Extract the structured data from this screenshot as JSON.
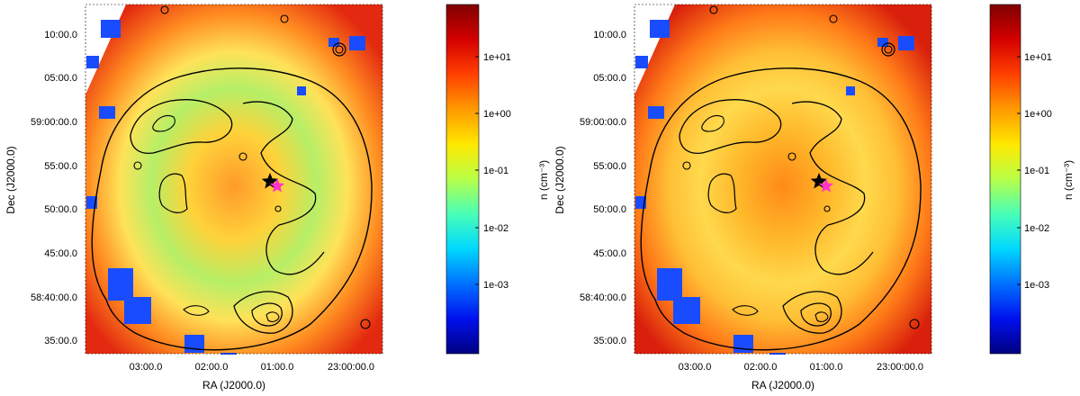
{
  "panels": [
    {
      "xlabel": "RA (J2000.0)",
      "ylabel": "Dec (J2000.0)",
      "x_ticks": [
        "03:00.0",
        "02:00.0",
        "01:00.0",
        "23:00:00.0"
      ],
      "y_ticks": [
        "10:00.0",
        "05:00.0",
        "59:00:00.0",
        "55:00.0",
        "50:00.0",
        "45:00.0",
        "58:40:00.0",
        "35:00.0"
      ]
    },
    {
      "xlabel": "RA (J2000.0)",
      "ylabel": "Dec (J2000.0)",
      "x_ticks": [
        "03:00.0",
        "02:00.0",
        "01:00.0",
        "23:00:00.0"
      ],
      "y_ticks": [
        "10:00.0",
        "05:00.0",
        "59:00:00.0",
        "55:00.0",
        "50:00.0",
        "45:00.0",
        "58:40:00.0",
        "35:00.0"
      ]
    }
  ],
  "colorbar": {
    "label": "n (cm⁻³)",
    "ticks": [
      "1e+01",
      "1e+00",
      "1e-01",
      "1e-02",
      "1e-03"
    ],
    "colors": [
      "#7f0000",
      "#d40000",
      "#ff4000",
      "#ff9a00",
      "#ffe800",
      "#b8ff48",
      "#48ffb8",
      "#00d8ff",
      "#0070ff",
      "#0010ee",
      "#000080"
    ]
  },
  "markers": [
    {
      "name": "black-star",
      "color": "#000000"
    },
    {
      "name": "magenta-star",
      "color": "#ff33cc"
    }
  ]
}
